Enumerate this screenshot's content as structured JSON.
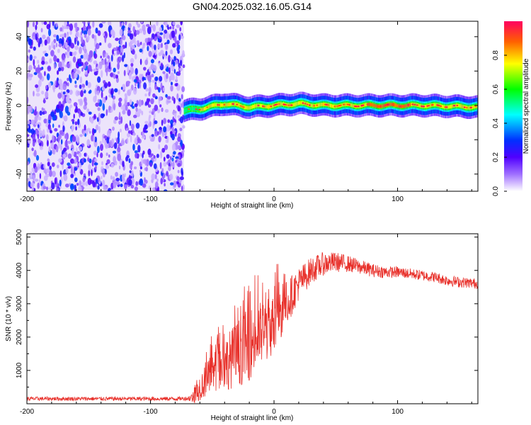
{
  "title": "GN04.2025.032.16.05.G14",
  "chart_data": [
    {
      "type": "heatmap",
      "title": "GN04.2025.032.16.05.G14",
      "xlabel": "Height of straight line (km)",
      "ylabel": "Frequency (Hz)",
      "xlim": [
        -200,
        165
      ],
      "ylim": [
        -50,
        49
      ],
      "xticks": [
        -200,
        -100,
        0,
        100
      ],
      "yticks": [
        -40,
        -20,
        0,
        20,
        40
      ],
      "colorbar": {
        "label": "Normalized spectral amplitude",
        "range": [
          0,
          1
        ],
        "ticks": [
          "0.0",
          "0.2",
          "0.4",
          "0.6",
          "0.8"
        ],
        "colors": [
          "#ffffff",
          "#7a00ff",
          "#0000ff",
          "#00ffff",
          "#00ff00",
          "#ffff00",
          "#ff8000",
          "#ff0000",
          "#ff0060"
        ]
      },
      "regions": [
        {
          "x_range": [
            -200,
            -73
          ],
          "description": "noise",
          "frequency_range": [
            -50,
            49
          ],
          "amplitude": [
            0.0,
            0.15
          ]
        },
        {
          "x_range": [
            -73,
            165
          ],
          "description": "signal band",
          "frequency_center": [
            [
              -73,
              -3
            ],
            [
              -60,
              -2
            ],
            [
              -40,
              1
            ],
            [
              -20,
              -1
            ],
            [
              0,
              0
            ],
            [
              20,
              1
            ],
            [
              40,
              0
            ],
            [
              60,
              0
            ],
            [
              80,
              0
            ],
            [
              100,
              0
            ],
            [
              120,
              0
            ],
            [
              165,
              -1
            ]
          ],
          "band_halfwidth": 4,
          "amplitude_peak": 0.95
        }
      ]
    },
    {
      "type": "line",
      "xlabel": "Height of straight line (km)",
      "ylabel": "SNR (10 * v/v)",
      "xlim": [
        -200,
        165
      ],
      "ylim": [
        0,
        5100
      ],
      "xticks": [
        -200,
        -100,
        0,
        100
      ],
      "yticks": [
        1000,
        2000,
        3000,
        4000,
        5000
      ],
      "color": "#e8302a",
      "series": [
        {
          "x": [
            -200,
            -180,
            -160,
            -140,
            -120,
            -100,
            -80,
            -70,
            -65,
            -60,
            -50,
            -40,
            -30,
            -20,
            -10,
            0,
            10,
            20,
            30,
            40,
            50,
            60,
            70,
            80,
            90,
            100,
            110,
            120,
            130,
            140,
            150,
            165
          ],
          "values": [
            150,
            150,
            150,
            150,
            150,
            150,
            150,
            160,
            200,
            500,
            900,
            1200,
            1500,
            1800,
            2100,
            2400,
            3000,
            3600,
            4000,
            4200,
            4250,
            4200,
            4100,
            4000,
            3950,
            3950,
            3900,
            3850,
            3800,
            3700,
            3650,
            3600
          ],
          "noise_amplitude": [
            60,
            60,
            60,
            60,
            60,
            60,
            60,
            60,
            200,
            400,
            600,
            800,
            1000,
            1100,
            1000,
            900,
            700,
            500,
            400,
            350,
            300,
            250,
            220,
            200,
            180,
            170,
            160,
            160,
            160,
            160,
            160,
            160
          ]
        }
      ]
    }
  ]
}
